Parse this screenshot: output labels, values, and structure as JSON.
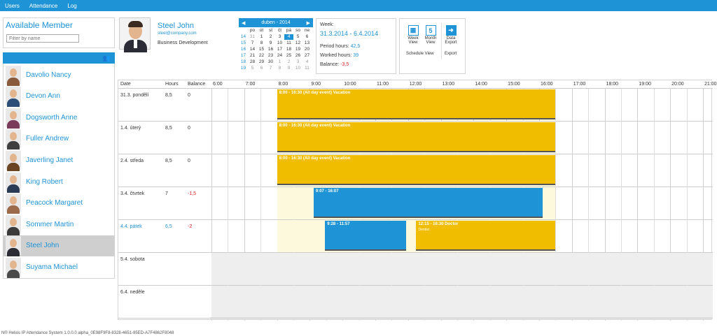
{
  "nav": {
    "items": [
      "Users",
      "Attendance",
      "Log"
    ]
  },
  "members": {
    "title": "Available Member",
    "filter_placeholder": "Filter by name",
    "list": [
      {
        "name": "Davolio Nancy",
        "selected": false
      },
      {
        "name": "Devon Ann",
        "selected": false
      },
      {
        "name": "Dogsworth Anne",
        "selected": false
      },
      {
        "name": "Fuller Andrew",
        "selected": false
      },
      {
        "name": "Javerling Janet",
        "selected": false
      },
      {
        "name": "King Robert",
        "selected": false
      },
      {
        "name": "Peacock Margaret",
        "selected": false
      },
      {
        "name": "Sommer Martin",
        "selected": false
      },
      {
        "name": "Steel John",
        "selected": true
      },
      {
        "name": "Suyama Michael",
        "selected": false
      }
    ]
  },
  "user": {
    "name": "Steel John",
    "email": "steel@company.com",
    "department": "Business Development"
  },
  "calendar": {
    "month": "duben - 2014",
    "weekdays": [
      "po",
      "út",
      "st",
      "čt",
      "pá",
      "so",
      "ne"
    ],
    "weeks": [
      {
        "wk": "14",
        "days": [
          "31",
          "1",
          "2",
          "3",
          "4",
          "5",
          "6"
        ]
      },
      {
        "wk": "15",
        "days": [
          "7",
          "8",
          "9",
          "10",
          "11",
          "12",
          "13"
        ]
      },
      {
        "wk": "16",
        "days": [
          "14",
          "15",
          "16",
          "17",
          "18",
          "19",
          "20"
        ]
      },
      {
        "wk": "17",
        "days": [
          "21",
          "22",
          "23",
          "24",
          "25",
          "26",
          "27"
        ]
      },
      {
        "wk": "18",
        "days": [
          "28",
          "29",
          "30",
          "1",
          "2",
          "3",
          "4"
        ]
      },
      {
        "wk": "19",
        "days": [
          "5",
          "6",
          "7",
          "8",
          "9",
          "10",
          "11"
        ]
      }
    ],
    "today": "4"
  },
  "week": {
    "label": "Week:",
    "range": "31.3.2014 - 6.4.2014",
    "period_label": "Period hours:",
    "period_value": "42,5",
    "worked_label": "Worked hours:",
    "worked_value": "39",
    "balance_label": "Balance:",
    "balance_value": "-3,5"
  },
  "views": {
    "week": "Week View",
    "week_line1": "Week",
    "week_line2": "View",
    "month_line1": "Month",
    "month_line2": "View",
    "month_num": "5",
    "export_line1": "Data",
    "export_line2": "Export",
    "schedule_group": "Schedule View",
    "export_group": "Export"
  },
  "grid": {
    "headers": {
      "date": "Date",
      "hours": "Hours",
      "balance": "Balance"
    },
    "hours": [
      "6:00",
      "7:00",
      "8:00",
      "9:00",
      "10:00",
      "11:00",
      "12:00",
      "13:00",
      "14:00",
      "15:00",
      "16:00",
      "17:00",
      "18:00",
      "19:00",
      "20:00",
      "21:00"
    ],
    "rows": [
      {
        "date": "31.3. pondělí",
        "hours": "8,5",
        "balance": "0",
        "weekend": false,
        "highlight": false,
        "work_from": 8,
        "work_to": 16.5,
        "events": [
          {
            "from": 8,
            "to": 16.5,
            "color": "#f0bd00",
            "text": "8:00 - 16:30 (All day event)   Vacation",
            "sub": ""
          }
        ]
      },
      {
        "date": "1.4. úterý",
        "hours": "8,5",
        "balance": "0",
        "weekend": false,
        "highlight": false,
        "work_from": 8,
        "work_to": 16.5,
        "events": [
          {
            "from": 8,
            "to": 16.5,
            "color": "#f0bd00",
            "text": "8:00 - 16:30 (All day event)   Vacation",
            "sub": ""
          }
        ]
      },
      {
        "date": "2.4. středa",
        "hours": "8,5",
        "balance": "0",
        "weekend": false,
        "highlight": false,
        "work_from": 8,
        "work_to": 16.5,
        "events": [
          {
            "from": 8,
            "to": 16.5,
            "color": "#f0bd00",
            "text": "8:00 - 16:30 (All day event)   Vacation",
            "sub": ""
          }
        ]
      },
      {
        "date": "3.4. čtvrtek",
        "hours": "7",
        "balance": "-1,5",
        "weekend": false,
        "highlight": false,
        "work_from": 8,
        "work_to": 16.5,
        "events": [
          {
            "from": 9.117,
            "to": 16.117,
            "color": "#1e93d6",
            "text": "9:07 - 16:07",
            "sub": ""
          }
        ]
      },
      {
        "date": "4.4. pátek",
        "hours": "6,5",
        "balance": "-2",
        "weekend": false,
        "highlight": true,
        "work_from": 8,
        "work_to": 16.5,
        "events": [
          {
            "from": 9.467,
            "to": 11.95,
            "color": "#1e93d6",
            "text": "9:28 - 11:57",
            "sub": ""
          },
          {
            "from": 12.25,
            "to": 16.5,
            "color": "#f0bd00",
            "text": "12:15 - 16:30   Doctor",
            "sub": "Dentist"
          }
        ]
      },
      {
        "date": "5.4. sobota",
        "hours": "",
        "balance": "",
        "weekend": true,
        "highlight": false,
        "events": []
      },
      {
        "date": "6.4. neděle",
        "hours": "",
        "balance": "",
        "weekend": true,
        "highlight": false,
        "events": []
      }
    ]
  },
  "footer": "N® Helios IP Attendance System  1.0.0.0  alpha_0E98F9F8-8328-4651-85ED-A7F4862F8048",
  "colors": {
    "accent": "#1e93d6",
    "vacation": "#f0bd00",
    "negative": "#e02020"
  }
}
